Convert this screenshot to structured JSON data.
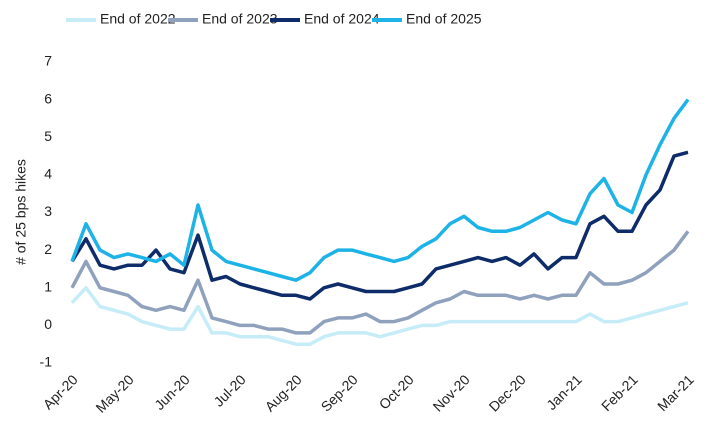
{
  "chart_data": {
    "type": "line",
    "y_label": "# of 25 bps hikes",
    "categories": [
      "Apr-20",
      null,
      null,
      null,
      "May-20",
      null,
      null,
      null,
      "Jun-20",
      null,
      null,
      null,
      "Jul-20",
      null,
      null,
      null,
      "Aug-20",
      null,
      null,
      null,
      "Sep-20",
      null,
      null,
      null,
      "Oct-20",
      null,
      null,
      null,
      "Nov-20",
      null,
      null,
      null,
      "Dec-20",
      null,
      null,
      null,
      "Jan-21",
      null,
      null,
      null,
      "Feb-21",
      null,
      null,
      null,
      "Mar-21"
    ],
    "series": [
      {
        "name": "End of 2022",
        "color": "#c6ecf8",
        "values": [
          0.6,
          1.0,
          0.5,
          0.4,
          0.3,
          0.1,
          0.0,
          -0.1,
          -0.1,
          0.5,
          -0.2,
          -0.2,
          -0.3,
          -0.3,
          -0.3,
          -0.4,
          -0.5,
          -0.5,
          -0.3,
          -0.2,
          -0.2,
          -0.2,
          -0.3,
          -0.2,
          -0.1,
          0.0,
          0.0,
          0.1,
          0.1,
          0.1,
          0.1,
          0.1,
          0.1,
          0.1,
          0.1,
          0.1,
          0.1,
          0.3,
          0.1,
          0.1,
          0.2,
          0.3,
          0.4,
          0.5,
          0.6
        ]
      },
      {
        "name": "End of 2023",
        "color": "#8fa1bd",
        "values": [
          1.0,
          1.7,
          1.0,
          0.9,
          0.8,
          0.5,
          0.4,
          0.5,
          0.4,
          1.2,
          0.2,
          0.1,
          0.0,
          0.0,
          -0.1,
          -0.1,
          -0.2,
          -0.2,
          0.1,
          0.2,
          0.2,
          0.3,
          0.1,
          0.1,
          0.2,
          0.4,
          0.6,
          0.7,
          0.9,
          0.8,
          0.8,
          0.8,
          0.7,
          0.8,
          0.7,
          0.8,
          0.8,
          1.4,
          1.1,
          1.1,
          1.2,
          1.4,
          1.7,
          2.0,
          2.5
        ]
      },
      {
        "name": "End of 2024",
        "color": "#0e2c6a",
        "values": [
          1.7,
          2.3,
          1.6,
          1.5,
          1.6,
          1.6,
          2.0,
          1.5,
          1.4,
          2.4,
          1.2,
          1.3,
          1.1,
          1.0,
          0.9,
          0.8,
          0.8,
          0.7,
          1.0,
          1.1,
          1.0,
          0.9,
          0.9,
          0.9,
          1.0,
          1.1,
          1.5,
          1.6,
          1.7,
          1.8,
          1.7,
          1.8,
          1.6,
          1.9,
          1.5,
          1.8,
          1.8,
          2.7,
          2.9,
          2.5,
          2.5,
          3.2,
          3.6,
          4.5,
          4.6
        ]
      },
      {
        "name": "End of 2025",
        "color": "#1eb3e6",
        "values": [
          1.7,
          2.7,
          2.0,
          1.8,
          1.9,
          1.8,
          1.7,
          1.9,
          1.6,
          3.2,
          2.0,
          1.7,
          1.6,
          1.5,
          1.4,
          1.3,
          1.2,
          1.4,
          1.8,
          2.0,
          2.0,
          1.9,
          1.8,
          1.7,
          1.8,
          2.1,
          2.3,
          2.7,
          2.9,
          2.6,
          2.5,
          2.5,
          2.6,
          2.8,
          3.0,
          2.8,
          2.7,
          3.5,
          3.9,
          3.2,
          3.0,
          4.0,
          4.8,
          5.5,
          6.0
        ]
      }
    ],
    "ylim": [
      -1,
      7
    ],
    "yticks": [
      -1,
      0,
      1,
      2,
      3,
      4,
      5,
      6,
      7
    ],
    "grid": false
  }
}
